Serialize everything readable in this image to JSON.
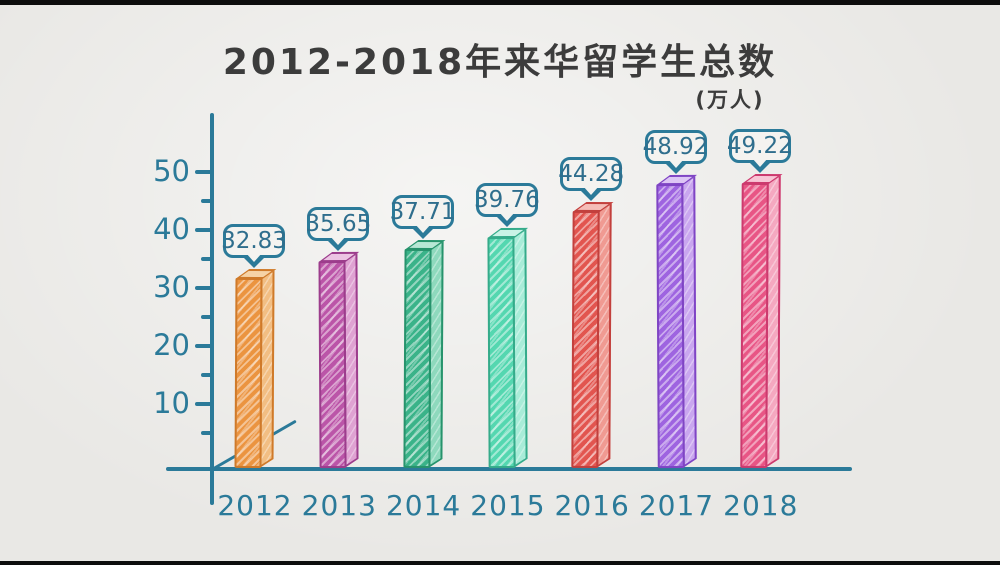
{
  "title": "2012-2018年来华留学生总数",
  "unit_label": "(万人)",
  "colors": {
    "axis": "#2b7a99",
    "title_text": "#3c3c3c",
    "bubble_fill": "#f4f3f0",
    "bubble_border": "#2b7a99",
    "bubble_text": "#2f6e8d",
    "paper": "#e9e8e5",
    "letterbox": "#0d0d0d"
  },
  "axis": {
    "y_tick_labels": [
      "50",
      "40",
      "30",
      "20",
      "10"
    ]
  },
  "chart_data": {
    "type": "bar",
    "title": "2012-2018年来华留学生总数",
    "unit": "万人",
    "xlabel": "",
    "ylabel": "万人",
    "categories": [
      "2012",
      "2013",
      "2014",
      "2015",
      "2016",
      "2017",
      "2018"
    ],
    "values": [
      32.83,
      35.65,
      37.71,
      39.76,
      44.28,
      48.92,
      49.22
    ],
    "value_labels": [
      "32.83",
      "35.65",
      "37.71",
      "39.76",
      "44.28",
      "48.92",
      "49.22"
    ],
    "ylim": [
      0,
      55
    ],
    "y_ticks": [
      10,
      20,
      30,
      40,
      50
    ],
    "grid": "off",
    "legend": "none",
    "style": "hand-drawn 3d bars with speech-bubble value callouts",
    "bar_styles": [
      {
        "name": "orange",
        "outline": "#cf7a2a",
        "front": "#eb9440",
        "side": "#f2be83",
        "top": "#f6d3a6"
      },
      {
        "name": "magenta",
        "outline": "#9c3d8c",
        "front": "#bb55a8",
        "side": "#dfa2d2",
        "top": "#ecc4e3"
      },
      {
        "name": "green",
        "outline": "#27936c",
        "front": "#3ab389",
        "side": "#8ed9bd",
        "top": "#b7e7d5"
      },
      {
        "name": "mint",
        "outline": "#35ab8a",
        "front": "#54d7b0",
        "side": "#a8ecd8",
        "top": "#c8f3e6"
      },
      {
        "name": "red",
        "outline": "#c2403d",
        "front": "#e2554f",
        "side": "#f09a92",
        "top": "#f5bdb7"
      },
      {
        "name": "purple",
        "outline": "#7f45c4",
        "front": "#9e64e0",
        "side": "#c9a6ef",
        "top": "#ddc6f5"
      },
      {
        "name": "pink",
        "outline": "#cc3a6e",
        "front": "#e85585",
        "side": "#f5a8c0",
        "top": "#f8c6d6"
      }
    ]
  }
}
